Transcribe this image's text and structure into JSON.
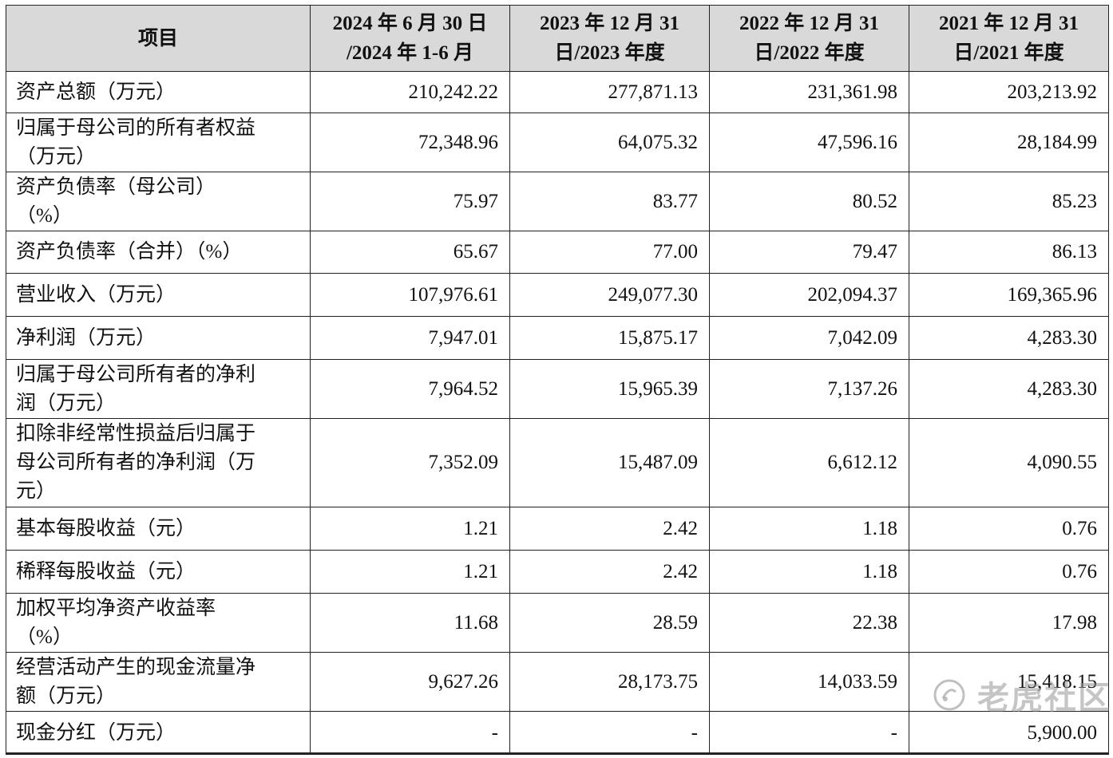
{
  "table": {
    "header": [
      "项目",
      "2024 年 6 月 30 日\n/2024 年 1-6 月",
      "2023 年 12 月 31\n日/2023 年度",
      "2022 年 12 月 31\n日/2022 年度",
      "2021 年 12 月 31\n日/2021 年度"
    ],
    "rows": [
      {
        "label": "资产总额（万元）",
        "values": [
          "210,242.22",
          "277,871.13",
          "231,361.98",
          "203,213.92"
        ]
      },
      {
        "label": "归属于母公司的所有者权益\n（万元）",
        "values": [
          "72,348.96",
          "64,075.32",
          "47,596.16",
          "28,184.99"
        ]
      },
      {
        "label": "资产负债率（母公司）\n（%）",
        "values": [
          "75.97",
          "83.77",
          "80.52",
          "85.23"
        ]
      },
      {
        "label": "资产负债率（合并）（%）",
        "values": [
          "65.67",
          "77.00",
          "79.47",
          "86.13"
        ]
      },
      {
        "label": "营业收入（万元）",
        "values": [
          "107,976.61",
          "249,077.30",
          "202,094.37",
          "169,365.96"
        ]
      },
      {
        "label": "净利润（万元）",
        "values": [
          "7,947.01",
          "15,875.17",
          "7,042.09",
          "4,283.30"
        ]
      },
      {
        "label": "归属于母公司所有者的净利\n润（万元）",
        "values": [
          "7,964.52",
          "15,965.39",
          "7,137.26",
          "4,283.30"
        ]
      },
      {
        "label": "扣除非经常性损益后归属于\n母公司所有者的净利润（万\n元）",
        "values": [
          "7,352.09",
          "15,487.09",
          "6,612.12",
          "4,090.55"
        ]
      },
      {
        "label": "基本每股收益（元）",
        "values": [
          "1.21",
          "2.42",
          "1.18",
          "0.76"
        ]
      },
      {
        "label": "稀释每股收益（元）",
        "values": [
          "1.21",
          "2.42",
          "1.18",
          "0.76"
        ]
      },
      {
        "label": "加权平均净资产收益率\n（%）",
        "values": [
          "11.68",
          "28.59",
          "22.38",
          "17.98"
        ]
      },
      {
        "label": "经营活动产生的现金流量净\n额（万元）",
        "values": [
          "9,627.26",
          "28,173.75",
          "14,033.59",
          "15,418.15"
        ]
      },
      {
        "label": "现金分红（万元）",
        "values": [
          "-",
          "-",
          "-",
          "5,900.00"
        ]
      }
    ]
  },
  "watermark": {
    "text": "老虎社区",
    "icon": "tiger-community-icon"
  }
}
